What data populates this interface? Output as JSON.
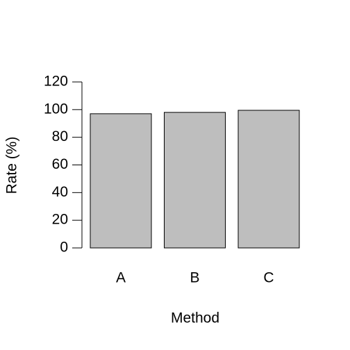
{
  "chart_data": {
    "type": "bar",
    "categories": [
      "A",
      "B",
      "C"
    ],
    "values": [
      97,
      98,
      99.5
    ],
    "color": "#bebebe",
    "ylim": [
      0,
      120
    ],
    "yticks": [
      0,
      20,
      40,
      60,
      80,
      100,
      120
    ],
    "xlabel": "Method",
    "ylabel": "Rate (%)",
    "grid": false
  }
}
